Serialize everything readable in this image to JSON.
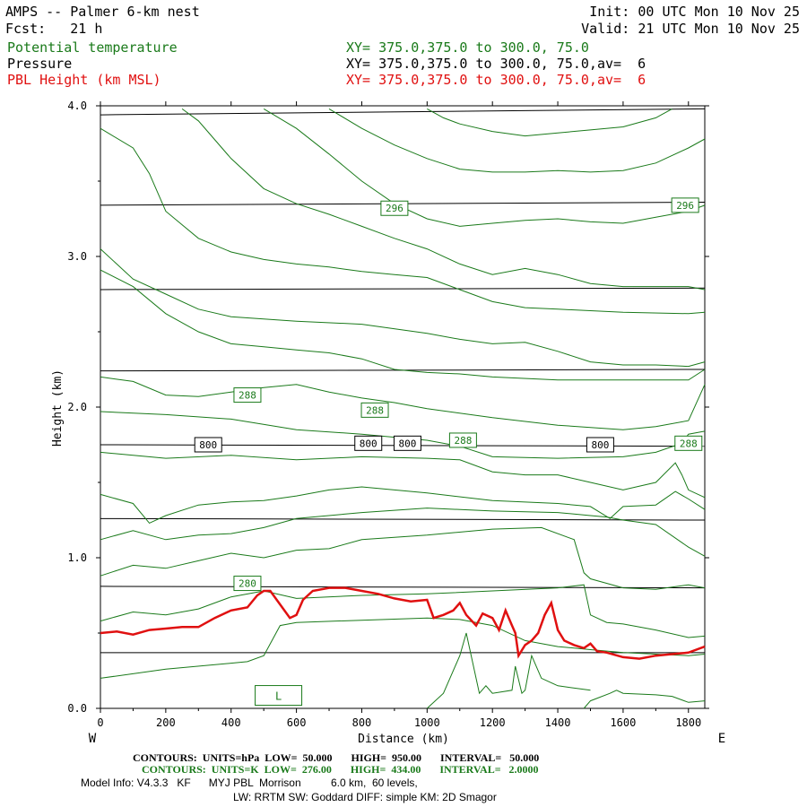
{
  "header": {
    "title": "AMPS -- Palmer 6-km nest",
    "fcst": "Fcst:   21 h",
    "init": "Init: 00 UTC Mon 10 Nov 25",
    "valid": "Valid: 21 UTC Mon 10 Nov 25"
  },
  "fields": [
    {
      "name": "Potential temperature",
      "xy": "XY= 375.0,375.0 to 300.0, 75.0",
      "color": "#1a7a1a"
    },
    {
      "name": "Pressure",
      "xy": "XY= 375.0,375.0 to 300.0, 75.0,av=  6",
      "color": "#000000"
    },
    {
      "name": "PBL Height (km MSL)",
      "xy": "XY= 375.0,375.0 to 300.0, 75.0,av=  6",
      "color": "#e01010"
    }
  ],
  "footer": {
    "pressure_contours": "CONTOURS:  UNITS=hPa  LOW=  50.000       HIGH=  950.00       INTERVAL=   50.000",
    "theta_contours": "CONTOURS:  UNITS=K  LOW=  276.00       HIGH=  434.00       INTERVAL=   2.0000",
    "model_info": "Model Info: V4.3.3   KF      MYJ PBL  Morrison          6.0 km,  60 levels,",
    "model_info2": "LW: RRTM SW: Goddard DIFF: simple KM: 2D Smagor"
  },
  "chart_data": {
    "type": "line",
    "title": "AMPS -- Palmer 6-km nest",
    "xlabel": "Distance (km)",
    "ylabel": "Height (km)",
    "xlim": [
      0,
      1850
    ],
    "ylim": [
      0.0,
      4.0
    ],
    "x_ticks": [
      0,
      200,
      400,
      600,
      800,
      1000,
      1200,
      1400,
      1600,
      1800
    ],
    "y_ticks": [
      0.0,
      1.0,
      2.0,
      3.0,
      4.0
    ],
    "y_tick_labels": [
      "0.0",
      "1.0",
      "2.0",
      "3.0",
      "4.0"
    ],
    "left_end_label": "W",
    "right_end_label": "E",
    "pressure_isobars": [
      {
        "y0": 0.37,
        "y1": 0.37
      },
      {
        "y0": 0.81,
        "y1": 0.8
      },
      {
        "y0": 1.26,
        "y1": 1.25
      },
      {
        "y0": 1.75,
        "y1": 1.74
      },
      {
        "y0": 2.24,
        "y1": 2.25
      },
      {
        "y0": 2.78,
        "y1": 2.79
      },
      {
        "y0": 3.34,
        "y1": 3.36
      },
      {
        "y0": 3.94,
        "y1": 3.98
      }
    ],
    "pressure_labels": [
      {
        "text": "800",
        "x": 330,
        "y": 1.75
      },
      {
        "text": "800",
        "x": 820,
        "y": 1.76
      },
      {
        "text": "800",
        "x": 940,
        "y": 1.76
      },
      {
        "text": "800",
        "x": 1530,
        "y": 1.75
      }
    ],
    "theta_labels": [
      {
        "text": "280",
        "x": 450,
        "y": 0.83
      },
      {
        "text": "288",
        "x": 450,
        "y": 2.08
      },
      {
        "text": "288",
        "x": 840,
        "y": 1.98
      },
      {
        "text": "288",
        "x": 1110,
        "y": 1.78
      },
      {
        "text": "288",
        "x": 1800,
        "y": 1.76
      },
      {
        "text": "296",
        "x": 900,
        "y": 3.32
      },
      {
        "text": "296",
        "x": 1790,
        "y": 3.34
      }
    ],
    "low_marker": {
      "text": "L",
      "x": 545,
      "y": 0.08
    },
    "theta_contours": [
      {
        "x": [
          0,
          200,
          400,
          450,
          500,
          550,
          600,
          1000,
          1100,
          1200,
          1300,
          1350,
          1400,
          1500,
          1600,
          1700,
          1800,
          1850
        ],
        "y": [
          0.2,
          0.26,
          0.3,
          0.31,
          0.35,
          0.55,
          0.57,
          0.6,
          0.59,
          0.55,
          0.45,
          0.43,
          0.41,
          0.39,
          0.37,
          0.36,
          0.35,
          0.36
        ]
      },
      {
        "x": [
          0,
          100,
          200,
          300,
          400,
          500,
          600,
          800,
          1000,
          1200,
          1400,
          1480,
          1500,
          1550,
          1600,
          1700,
          1800,
          1850
        ],
        "y": [
          0.58,
          0.64,
          0.62,
          0.66,
          0.74,
          0.78,
          0.73,
          0.75,
          0.76,
          0.78,
          0.8,
          0.82,
          0.62,
          0.57,
          0.56,
          0.52,
          0.47,
          0.48
        ]
      },
      {
        "x": [
          0,
          100,
          200,
          300,
          400,
          500,
          600,
          700,
          800,
          1000,
          1200,
          1350,
          1450,
          1480,
          1500,
          1600,
          1700,
          1800,
          1850
        ],
        "y": [
          0.88,
          0.95,
          0.93,
          0.98,
          1.03,
          1.0,
          1.05,
          1.06,
          1.12,
          1.15,
          1.19,
          1.2,
          1.12,
          0.9,
          0.86,
          0.8,
          0.79,
          0.82,
          0.8
        ]
      },
      {
        "x": [
          0,
          100,
          200,
          300,
          400,
          500,
          600,
          800,
          1000,
          1200,
          1400,
          1500,
          1550,
          1600,
          1700,
          1800,
          1850
        ],
        "y": [
          1.12,
          1.18,
          1.12,
          1.15,
          1.16,
          1.2,
          1.26,
          1.3,
          1.33,
          1.31,
          1.3,
          1.28,
          1.27,
          1.25,
          1.22,
          1.07,
          1.01
        ]
      },
      {
        "x": [
          0,
          100,
          150,
          200,
          300,
          400,
          500,
          600,
          700,
          800,
          1000,
          1200,
          1400,
          1500,
          1560,
          1600,
          1700,
          1760,
          1800,
          1850
        ],
        "y": [
          1.42,
          1.36,
          1.23,
          1.28,
          1.35,
          1.37,
          1.38,
          1.41,
          1.45,
          1.47,
          1.43,
          1.38,
          1.36,
          1.34,
          1.26,
          1.34,
          1.35,
          1.44,
          1.39,
          1.32
        ]
      },
      {
        "x": [
          0,
          200,
          400,
          600,
          800,
          1000,
          1100,
          1200,
          1300,
          1400,
          1500,
          1600,
          1700,
          1760,
          1780,
          1800,
          1850
        ],
        "y": [
          1.7,
          1.66,
          1.68,
          1.65,
          1.67,
          1.66,
          1.65,
          1.57,
          1.55,
          1.55,
          1.5,
          1.45,
          1.5,
          1.63,
          1.55,
          1.45,
          1.4
        ]
      },
      {
        "x": [
          0,
          200,
          400,
          600,
          800,
          1000,
          1100,
          1200,
          1400,
          1600,
          1700,
          1780,
          1800,
          1850
        ],
        "y": [
          1.97,
          1.95,
          1.92,
          1.85,
          1.82,
          1.78,
          1.74,
          1.67,
          1.66,
          1.67,
          1.7,
          1.76,
          1.82,
          1.84
        ]
      },
      {
        "x": [
          0,
          100,
          200,
          300,
          400,
          500,
          600,
          700,
          800,
          900,
          1000,
          1200,
          1400,
          1600,
          1700,
          1800,
          1850
        ],
        "y": [
          2.2,
          2.17,
          2.08,
          2.07,
          2.1,
          2.13,
          2.15,
          2.1,
          2.06,
          2.03,
          1.99,
          1.93,
          1.88,
          1.85,
          1.87,
          1.91,
          2.15
        ]
      },
      {
        "x": [
          0,
          100,
          200,
          300,
          400,
          500,
          600,
          700,
          800,
          900,
          1000,
          1100,
          1200,
          1400,
          1600,
          1800,
          1850
        ],
        "y": [
          2.91,
          2.8,
          2.62,
          2.5,
          2.42,
          2.4,
          2.38,
          2.36,
          2.32,
          2.25,
          2.23,
          2.22,
          2.2,
          2.18,
          2.18,
          2.18,
          2.25
        ]
      },
      {
        "x": [
          0,
          100,
          200,
          300,
          400,
          600,
          800,
          1000,
          1100,
          1200,
          1300,
          1400,
          1500,
          1600,
          1700,
          1800,
          1850
        ],
        "y": [
          3.05,
          2.85,
          2.75,
          2.65,
          2.6,
          2.57,
          2.55,
          2.49,
          2.45,
          2.42,
          2.43,
          2.37,
          2.3,
          2.28,
          2.28,
          2.27,
          2.3
        ]
      },
      {
        "x": [
          0,
          100,
          150,
          200,
          300,
          400,
          500,
          600,
          700,
          800,
          900,
          1000,
          1100,
          1200,
          1300,
          1400,
          1600,
          1800,
          1850
        ],
        "y": [
          3.85,
          3.72,
          3.55,
          3.3,
          3.12,
          3.03,
          2.98,
          2.95,
          2.93,
          2.9,
          2.88,
          2.86,
          2.78,
          2.7,
          2.66,
          2.65,
          2.63,
          2.62,
          2.63
        ]
      },
      {
        "x": [
          250,
          300,
          400,
          500,
          600,
          700,
          800,
          900,
          1000,
          1100,
          1200,
          1300,
          1400,
          1500,
          1600,
          1700,
          1800,
          1850
        ],
        "y": [
          3.98,
          3.9,
          3.65,
          3.45,
          3.35,
          3.28,
          3.2,
          3.12,
          3.05,
          2.95,
          2.88,
          2.92,
          2.88,
          2.82,
          2.8,
          2.8,
          2.8,
          2.78
        ]
      },
      {
        "x": [
          500,
          600,
          700,
          800,
          900,
          1000,
          1100,
          1200,
          1300,
          1400,
          1500,
          1600,
          1700,
          1800,
          1850
        ],
        "y": [
          3.98,
          3.85,
          3.68,
          3.5,
          3.35,
          3.25,
          3.2,
          3.22,
          3.24,
          3.25,
          3.23,
          3.22,
          3.26,
          3.3,
          3.34
        ]
      },
      {
        "x": [
          700,
          800,
          900,
          1000,
          1100,
          1200,
          1300,
          1400,
          1500,
          1600,
          1700,
          1800,
          1850
        ],
        "y": [
          3.98,
          3.85,
          3.74,
          3.65,
          3.58,
          3.56,
          3.56,
          3.57,
          3.56,
          3.57,
          3.62,
          3.72,
          3.78
        ]
      },
      {
        "x": [
          1000,
          1050,
          1100,
          1200,
          1300,
          1400,
          1500,
          1600,
          1700,
          1750
        ],
        "y": [
          3.98,
          3.92,
          3.88,
          3.83,
          3.8,
          3.82,
          3.84,
          3.86,
          3.92,
          3.98
        ]
      },
      {
        "x": [
          1480,
          1500,
          1560,
          1580,
          1600,
          1700,
          1750,
          1800,
          1850
        ],
        "y": [
          0.0,
          0.05,
          0.1,
          0.12,
          0.1,
          0.09,
          0.08,
          0.04,
          0.05
        ]
      },
      {
        "x": [
          1000,
          1050,
          1100,
          1120,
          1160,
          1180,
          1200,
          1260,
          1270,
          1290,
          1300,
          1320,
          1350,
          1400,
          1500
        ],
        "y": [
          0.0,
          0.1,
          0.35,
          0.5,
          0.1,
          0.15,
          0.1,
          0.12,
          0.28,
          0.1,
          0.12,
          0.35,
          0.2,
          0.15,
          0.12
        ]
      }
    ],
    "pbl_height": {
      "x": [
        0,
        50,
        100,
        150,
        200,
        250,
        300,
        350,
        400,
        450,
        480,
        500,
        520,
        560,
        580,
        600,
        620,
        650,
        700,
        750,
        800,
        850,
        900,
        950,
        1000,
        1020,
        1050,
        1080,
        1100,
        1120,
        1150,
        1170,
        1200,
        1220,
        1240,
        1260,
        1270,
        1280,
        1300,
        1320,
        1340,
        1360,
        1380,
        1400,
        1420,
        1450,
        1480,
        1500,
        1520,
        1550,
        1600,
        1650,
        1700,
        1750,
        1800,
        1850
      ],
      "y": [
        0.5,
        0.51,
        0.49,
        0.52,
        0.53,
        0.54,
        0.54,
        0.6,
        0.65,
        0.67,
        0.75,
        0.78,
        0.78,
        0.66,
        0.6,
        0.62,
        0.72,
        0.78,
        0.8,
        0.8,
        0.78,
        0.76,
        0.73,
        0.71,
        0.72,
        0.6,
        0.62,
        0.65,
        0.7,
        0.62,
        0.55,
        0.63,
        0.6,
        0.52,
        0.65,
        0.55,
        0.5,
        0.35,
        0.42,
        0.45,
        0.5,
        0.62,
        0.7,
        0.52,
        0.45,
        0.42,
        0.4,
        0.43,
        0.38,
        0.37,
        0.34,
        0.33,
        0.35,
        0.36,
        0.37,
        0.41
      ]
    },
    "pressure_color": "#000000",
    "theta_color": "#1a7a1a",
    "pbl_color": "#e01010"
  }
}
